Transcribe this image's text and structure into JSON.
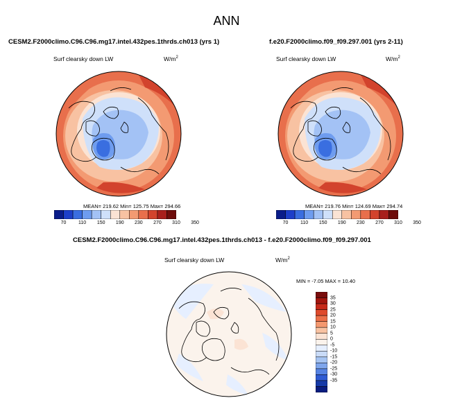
{
  "season": "ANN",
  "panels": [
    {
      "title": "CESM2.F2000climo.C96.C96.mg17.intel.432pes.1thrds.ch013 (yrs 1)",
      "variable": "Surf clearsky down LW",
      "units": "W/m",
      "units_exp": "2",
      "stats": "MEAN= 219.62  Min= 125.75  Max= 294.66",
      "colorbar_ticks": [
        "70",
        "110",
        "150",
        "190",
        "230",
        "270",
        "310",
        "350"
      ]
    },
    {
      "title": "f.e20.F2000climo.f09_f09.297.001 (yrs 2-11)",
      "variable": "Surf clearsky down LW",
      "units": "W/m",
      "units_exp": "2",
      "stats": "MEAN= 219.76  Min= 124.69  Max= 294.74",
      "colorbar_ticks": [
        "70",
        "110",
        "150",
        "190",
        "230",
        "270",
        "310",
        "350"
      ]
    }
  ],
  "diff_panel": {
    "title": "CESM2.F2000climo.C96.C96.mg17.intel.432pes.1thrds.ch013 - f.e20.F2000climo.f09_f09.297.001",
    "variable": "Surf clearsky down LW",
    "units": "W/m",
    "units_exp": "2",
    "stats": "MIN =  -7.05 MAX =  10.40",
    "colorbar_ticks": [
      "35",
      "30",
      "25",
      "20",
      "15",
      "10",
      "5",
      "0",
      "-5",
      "-10",
      "-15",
      "-20",
      "-25",
      "-30",
      "-35"
    ]
  },
  "colors": {
    "abs_colorbar": [
      "#0a1d8a",
      "#1d3fc9",
      "#3a6ee0",
      "#6e9cef",
      "#a3c2f5",
      "#cfe0fa",
      "#fbe3d4",
      "#f8c2a2",
      "#f39a72",
      "#e86f4c",
      "#d2432d",
      "#a81f1c",
      "#6e0d0b"
    ],
    "diff_colorbar": [
      "#7a0c0c",
      "#a3160f",
      "#c72a1a",
      "#df4a2c",
      "#ec7049",
      "#f4986f",
      "#f8c2a2",
      "#fbe3d4",
      "#fbf3ec",
      "#e6efff",
      "#c9dbf7",
      "#a6c4f2",
      "#7fa6ec",
      "#5683e3",
      "#2f5bd3",
      "#163aa8",
      "#0a1d80"
    ]
  }
}
